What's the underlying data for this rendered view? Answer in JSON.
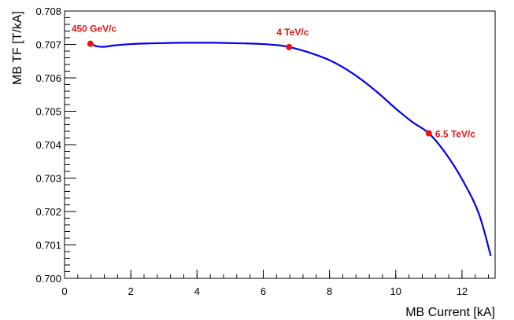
{
  "chart_data": {
    "type": "line",
    "xlabel": "MB Current [kA]",
    "ylabel": "MB TF [T/kA]",
    "xlim": [
      0,
      13
    ],
    "ylim": [
      0.7,
      0.708
    ],
    "x_ticks": [
      0,
      2,
      4,
      6,
      8,
      10,
      12
    ],
    "x_tick_labels": [
      "0",
      "2",
      "4",
      "6",
      "8",
      "10",
      "12"
    ],
    "y_ticks": [
      0.7,
      0.701,
      0.702,
      0.703,
      0.704,
      0.705,
      0.706,
      0.707,
      0.708
    ],
    "y_tick_labels": [
      "0.700",
      "0.701",
      "0.702",
      "0.703",
      "0.704",
      "0.705",
      "0.706",
      "0.707",
      "0.708"
    ],
    "grid": false,
    "line_color": "#0000ee",
    "marker_color": "#ee1111",
    "series": [
      {
        "x": [
          0.78,
          0.9,
          1.0,
          1.2,
          1.5,
          2.0,
          2.5,
          3.0,
          3.5,
          4.0,
          4.5,
          5.0,
          5.5,
          6.0,
          6.5,
          6.78,
          7.0,
          7.5,
          8.0,
          8.5,
          9.0,
          9.5,
          10.0,
          10.5,
          11.0,
          11.5,
          12.0,
          12.5,
          12.87
        ],
        "y": [
          0.70702,
          0.70697,
          0.70694,
          0.70693,
          0.70697,
          0.70701,
          0.70703,
          0.70704,
          0.70705,
          0.70705,
          0.70705,
          0.70704,
          0.70703,
          0.70701,
          0.70697,
          0.70692,
          0.70687,
          0.70672,
          0.70653,
          0.70626,
          0.70592,
          0.70552,
          0.70508,
          0.70468,
          0.70434,
          0.70375,
          0.70297,
          0.70196,
          0.70067
        ]
      }
    ],
    "annotations": [
      {
        "label": "450 GeV/c",
        "x": 0.78,
        "y": 0.70702
      },
      {
        "label": "4 TeV/c",
        "x": 6.78,
        "y": 0.70692
      },
      {
        "label": "6.5 TeV/c",
        "x": 11.0,
        "y": 0.70434
      }
    ]
  }
}
